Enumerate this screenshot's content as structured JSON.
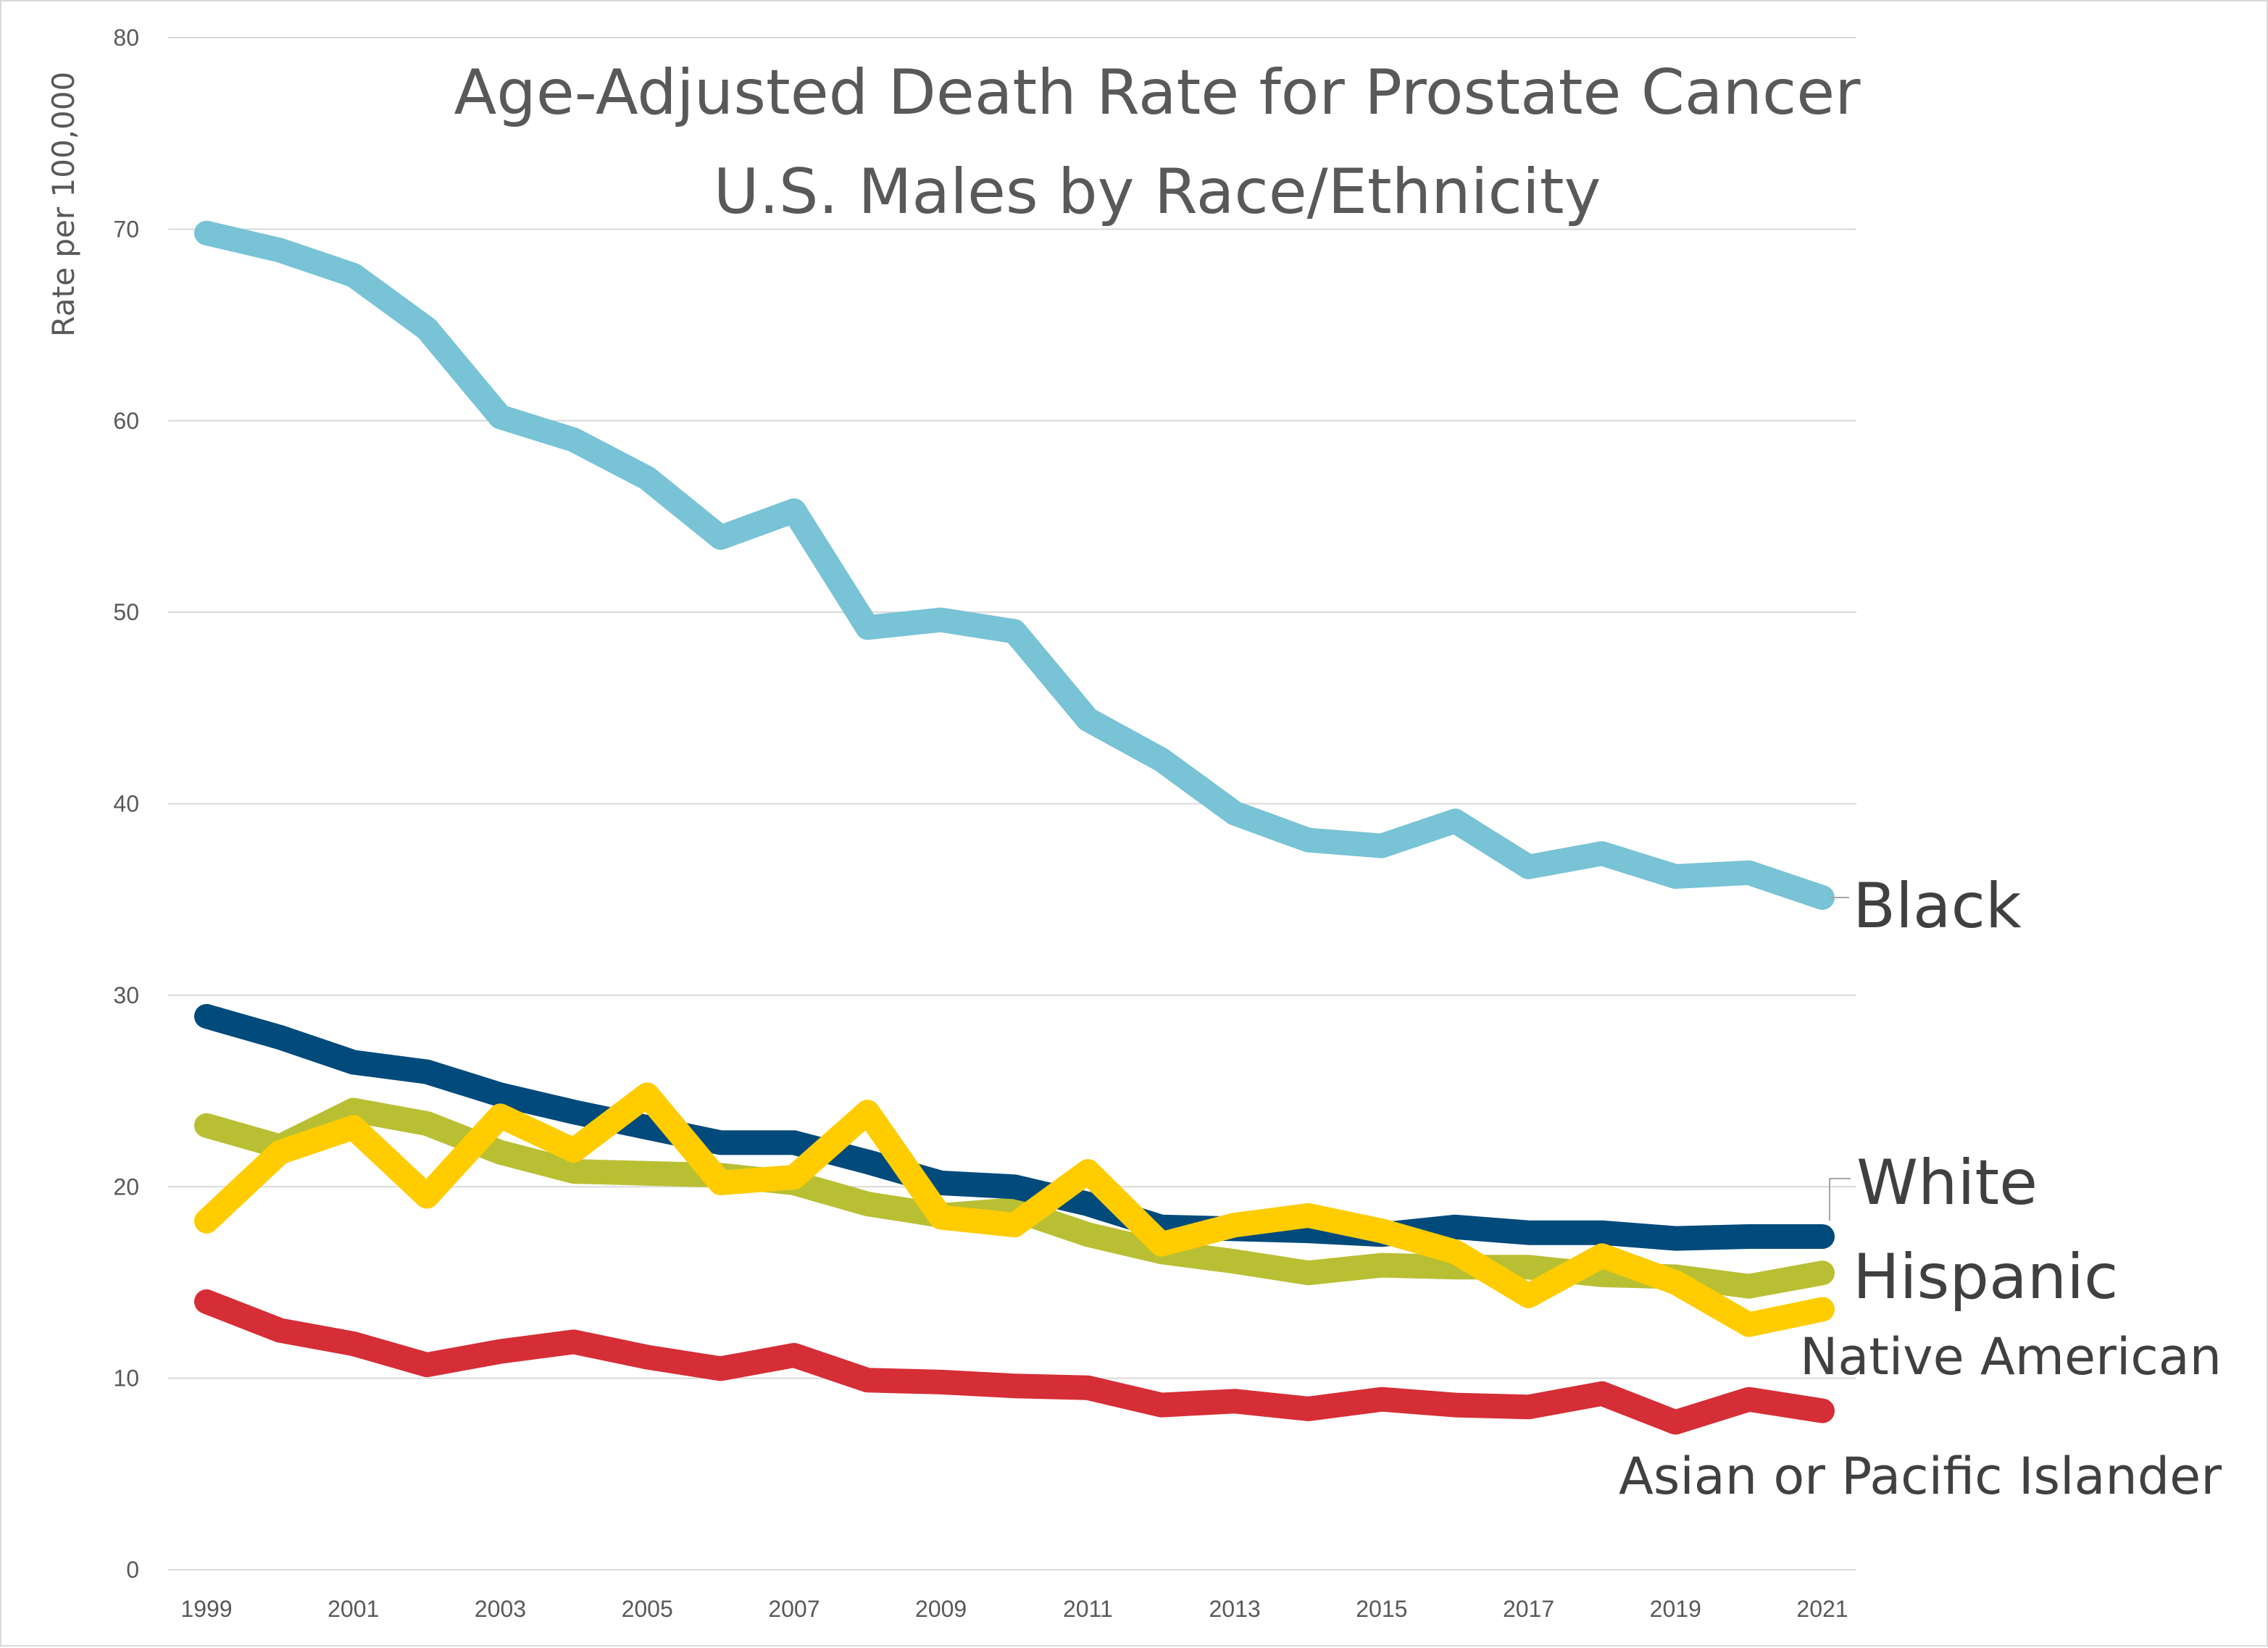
{
  "chart_data": {
    "type": "line",
    "title_line1": "Age-Adjusted Death Rate for Prostate Cancer",
    "title_line2": "U.S. Males by Race/Ethnicity",
    "xlabel": "",
    "ylabel": "Rate per 100,000",
    "ylim": [
      0,
      80
    ],
    "yticks": [
      0,
      10,
      20,
      30,
      40,
      50,
      60,
      70,
      80
    ],
    "xticks": [
      1999,
      2001,
      2003,
      2005,
      2007,
      2009,
      2011,
      2013,
      2015,
      2017,
      2019,
      2021
    ],
    "x": [
      1999,
      2000,
      2001,
      2002,
      2003,
      2004,
      2005,
      2006,
      2007,
      2008,
      2009,
      2010,
      2011,
      2012,
      2013,
      2014,
      2015,
      2016,
      2017,
      2018,
      2019,
      2020,
      2021
    ],
    "grid": true,
    "legend": "direct labels at line ends",
    "series": [
      {
        "name": "Black",
        "color": "#78c3d6",
        "values": [
          69.8,
          68.9,
          67.6,
          64.8,
          60.2,
          59.0,
          57.0,
          53.9,
          55.3,
          49.2,
          49.6,
          49.0,
          44.4,
          42.3,
          39.5,
          38.1,
          37.8,
          39.1,
          36.7,
          37.4,
          36.2,
          36.4,
          35.1
        ]
      },
      {
        "name": "White",
        "color": "#004a7c",
        "values": [
          28.9,
          27.8,
          26.5,
          26.0,
          24.8,
          23.9,
          23.1,
          22.3,
          22.3,
          21.3,
          20.2,
          20.0,
          19.1,
          17.9,
          17.8,
          17.7,
          17.5,
          17.9,
          17.6,
          17.6,
          17.3,
          17.4,
          17.4
        ]
      },
      {
        "name": "Hispanic",
        "color": "#b9bf33",
        "values": [
          23.2,
          22.1,
          24.0,
          23.3,
          21.8,
          20.8,
          20.7,
          20.6,
          20.2,
          19.1,
          18.5,
          18.8,
          17.5,
          16.6,
          16.1,
          15.5,
          15.9,
          15.8,
          15.8,
          15.4,
          15.3,
          14.8,
          15.5
        ]
      },
      {
        "name": "Native American",
        "color": "#ffcc00",
        "values": [
          18.2,
          21.8,
          23.1,
          19.5,
          23.7,
          21.9,
          24.8,
          20.2,
          20.5,
          23.9,
          18.4,
          18.0,
          20.8,
          17.0,
          18.0,
          18.5,
          17.7,
          16.6,
          14.3,
          16.4,
          15.0,
          12.8,
          13.6
        ]
      },
      {
        "name": "Asian or Pacific Islander",
        "color": "#d62e36",
        "values": [
          14.0,
          12.5,
          11.8,
          10.7,
          11.4,
          11.9,
          11.1,
          10.5,
          11.2,
          9.9,
          9.8,
          9.6,
          9.5,
          8.6,
          8.8,
          8.4,
          8.9,
          8.6,
          8.5,
          9.2,
          7.7,
          8.9,
          8.3
        ]
      }
    ]
  }
}
